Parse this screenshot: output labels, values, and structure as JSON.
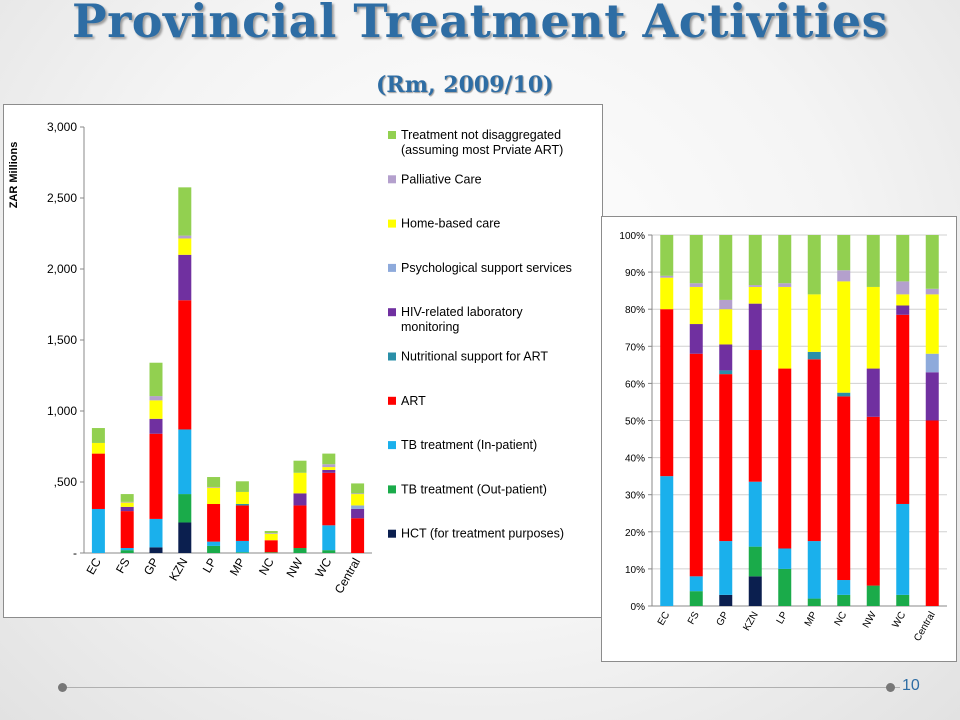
{
  "slide": {
    "title": "Provincial Treatment Activities",
    "subtitle": "(Rm, 2009/10)",
    "page_number": "10",
    "title_color": "#2e6da4"
  },
  "categories_colors": {
    "HCT (for treatment purposes)": "#0b1f4f",
    "TB treatment (Out-patient)": "#1aab4a",
    "TB treatment (In-patient)": "#1ab0ec",
    "ART": "#ff0000",
    "Nutritional support for ART": "#2a8fa8",
    "HIV-related  laboratory monitoring": "#7030a0",
    "Psychological support services": "#8eaadb",
    "Home-based care": "#ffff00",
    "Palliative Care": "#b4a0cd",
    "Treatment not disaggregated (assuming most Prviate ART)": "#92d050"
  },
  "chart_data": [
    {
      "type": "bar",
      "stacked": true,
      "title": "",
      "xlabel": "",
      "ylabel": "ZAR Millions",
      "ylim": [
        0,
        3000
      ],
      "yticks": [
        0,
        500,
        1000,
        1500,
        2000,
        2500,
        3000
      ],
      "ytick_labels": [
        "-",
        ",500",
        "1,000",
        "1,500",
        "2,000",
        "2,500",
        "3,000"
      ],
      "grid": false,
      "legend_position": "right",
      "categories": [
        "EC",
        "FS",
        "GP",
        "KZN",
        "LP",
        "MP",
        "NC",
        "NW",
        "WC",
        "Central"
      ],
      "series": [
        {
          "name": "HCT (for treatment purposes)",
          "values": [
            0,
            0,
            40,
            215,
            0,
            0,
            0,
            0,
            0,
            0
          ]
        },
        {
          "name": "TB treatment (Out-patient)",
          "values": [
            0,
            20,
            0,
            200,
            50,
            5,
            5,
            35,
            20,
            0
          ]
        },
        {
          "name": "TB treatment (In-patient)",
          "values": [
            310,
            15,
            200,
            455,
            30,
            80,
            0,
            0,
            175,
            0
          ]
        },
        {
          "name": "ART",
          "values": [
            390,
            260,
            600,
            910,
            265,
            250,
            85,
            300,
            370,
            245
          ]
        },
        {
          "name": "Nutritional support for ART",
          "values": [
            0,
            0,
            0,
            0,
            0,
            10,
            0,
            0,
            0,
            0
          ]
        },
        {
          "name": "HIV-related  laboratory monitoring",
          "values": [
            0,
            30,
            105,
            320,
            0,
            0,
            0,
            85,
            20,
            65
          ]
        },
        {
          "name": "Psychological support services",
          "values": [
            0,
            0,
            0,
            0,
            0,
            0,
            0,
            0,
            0,
            25
          ]
        },
        {
          "name": "Home-based care",
          "values": [
            75,
            30,
            130,
            115,
            115,
            85,
            45,
            145,
            20,
            80
          ]
        },
        {
          "name": "Palliative Care",
          "values": [
            0,
            5,
            30,
            20,
            5,
            0,
            5,
            0,
            20,
            5
          ]
        },
        {
          "name": "Treatment not disaggregated (assuming most Prviate ART)",
          "values": [
            105,
            55,
            235,
            340,
            70,
            75,
            15,
            85,
            75,
            70
          ]
        }
      ]
    },
    {
      "type": "bar",
      "stacked": true,
      "percent": true,
      "title": "",
      "xlabel": "",
      "ylabel": "",
      "ylim": [
        0,
        100
      ],
      "yticks": [
        0,
        10,
        20,
        30,
        40,
        50,
        60,
        70,
        80,
        90,
        100
      ],
      "ytick_labels": [
        "0%",
        "10%",
        "20%",
        "30%",
        "40%",
        "50%",
        "60%",
        "70%",
        "80%",
        "90%",
        "100%"
      ],
      "grid": true,
      "categories": [
        "EC",
        "FS",
        "GP",
        "KZN",
        "LP",
        "MP",
        "NC",
        "NW",
        "WC",
        "Central"
      ],
      "series": [
        {
          "name": "HCT (for treatment purposes)",
          "values": [
            0,
            0,
            3,
            8,
            0,
            0,
            0,
            0,
            0,
            0
          ]
        },
        {
          "name": "TB treatment (Out-patient)",
          "values": [
            0,
            4,
            0,
            8,
            10,
            2,
            3,
            5.5,
            3,
            0
          ]
        },
        {
          "name": "TB treatment (In-patient)",
          "values": [
            35,
            4,
            14.5,
            17.5,
            5.5,
            15.5,
            4,
            0,
            24.5,
            0
          ]
        },
        {
          "name": "ART",
          "values": [
            45,
            60,
            45,
            35.5,
            48.5,
            49,
            49.5,
            45.5,
            51,
            50
          ]
        },
        {
          "name": "Nutritional support for ART",
          "values": [
            0,
            0,
            1,
            0,
            0,
            2,
            1,
            0,
            0,
            0
          ]
        },
        {
          "name": "HIV-related  laboratory monitoring",
          "values": [
            0,
            8,
            7,
            12.5,
            0,
            0,
            0,
            13,
            2.5,
            13
          ]
        },
        {
          "name": "Psychological support services",
          "values": [
            0,
            0,
            0,
            0,
            0,
            0,
            0,
            0,
            0,
            5
          ]
        },
        {
          "name": "Home-based care",
          "values": [
            8.5,
            10,
            9.5,
            4.5,
            22,
            15.5,
            30,
            22,
            3,
            16
          ]
        },
        {
          "name": "Palliative Care",
          "values": [
            0.5,
            1,
            2.5,
            0.5,
            1,
            0,
            3,
            0,
            3.5,
            1.5
          ]
        },
        {
          "name": "Treatment not disaggregated (assuming most Prviate ART)",
          "values": [
            11,
            13,
            17.5,
            13.5,
            13,
            16,
            9.5,
            14,
            12.5,
            14.5
          ]
        }
      ]
    }
  ]
}
